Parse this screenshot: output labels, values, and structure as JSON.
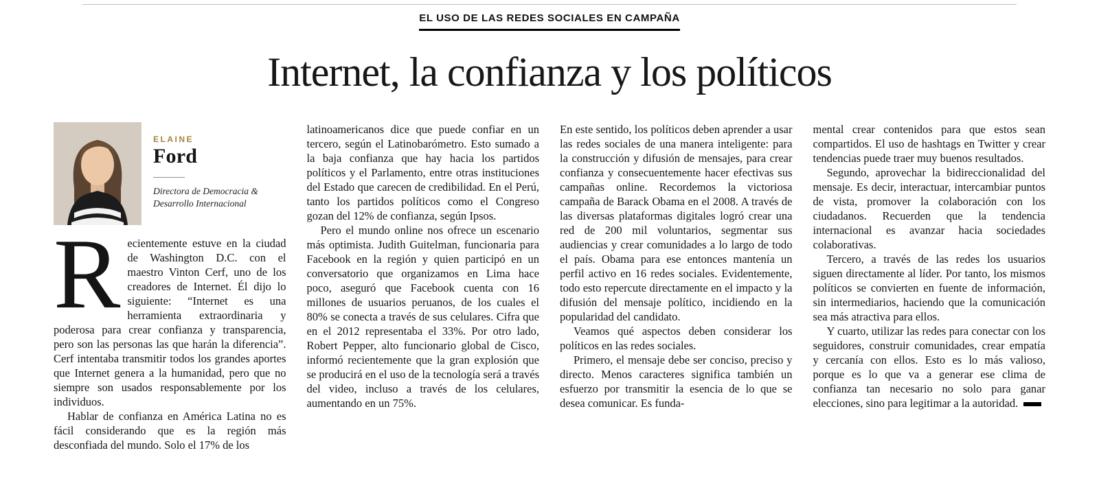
{
  "kicker": "EL USO DE LAS REDES SOCIALES EN CAMPAÑA",
  "title": "Internet, la confianza y los políticos",
  "author": {
    "first_name": "ELAINE",
    "last_name": "Ford",
    "role_line1": "Directora de Democracia &",
    "role_line2": "Desarrollo Internacional"
  },
  "colors": {
    "accent_gold": "#a8853e",
    "text": "#141414",
    "rule": "#000000"
  },
  "columns": {
    "col1": [
      "Recientemente estuve en la ciudad de Washington D.C. con el maestro Vinton Cerf, uno de los creadores de Internet. Él dijo lo siguiente: “Internet es una herramienta extraordinaria y poderosa para crear confianza y transparencia, pero son las personas las que harán la diferencia”. Cerf intentaba transmitir todos los grandes aportes que Internet genera a la humanidad, pero que no siempre son usados responsablemente por los individuos.",
      "Hablar de confianza en América Latina no es fácil considerando que es la región más desconfiada del mundo. Solo el 17% de los"
    ],
    "col2": [
      "latinoamericanos dice que puede confiar en un tercero, según el Latinobarómetro. Esto sumado a la baja confianza que hay hacia los partidos políticos y el Parlamento, entre otras instituciones del Estado que carecen de credibilidad. En el Perú, tanto los partidos políticos como el Congreso gozan del 12% de confianza, según Ipsos.",
      "Pero el mundo online nos ofrece un escenario más optimista. Judith Guitelman, funcionaria para Facebook en la región y quien participó en un conversatorio que organizamos en Lima hace poco, aseguró que Facebook cuenta con 16 millones de usuarios peruanos, de los cuales el 80% se conecta a través de sus celulares. Cifra que en el 2012 representaba el 33%. Por otro lado, Robert Pepper, alto funcionario global de Cisco, informó recientemente que la gran explosión que se producirá en el uso de la tecnología será a través del video, incluso a través de los celulares, aumentando en un 75%."
    ],
    "col3": [
      "En este sentido, los políticos deben aprender a usar las redes sociales de una manera inteligente: para la construcción y difusión de mensajes, para crear confianza y consecuentemente hacer efectivas sus campañas online. Recordemos la victoriosa campaña de Barack Obama en el 2008. A través de las diversas plataformas digitales logró crear una red de 200 mil voluntarios, segmentar sus audiencias y crear comunidades a lo largo de todo el país. Obama para ese entonces mantenía un perfil activo en 16 redes sociales. Evidentemente, todo esto repercute directamente en el impacto y la difusión del mensaje político, incidiendo en la popularidad del candidato.",
      "Veamos qué aspectos deben considerar los políticos en las redes sociales.",
      "Primero, el mensaje debe ser conciso, preciso y directo. Menos caracteres significa también un esfuerzo por transmitir la esencia de lo que se desea comunicar. Es funda-"
    ],
    "col4": [
      "mental crear contenidos para que estos sean compartidos. El uso de hashtags en Twitter y crear tendencias puede traer muy buenos resultados.",
      "Segundo, aprovechar la bidireccionalidad del mensaje. Es decir, interactuar, intercambiar puntos de vista, promover la colaboración con los ciudadanos. Recuerden que la tendencia internacional es avanzar hacia sociedades colaborativas.",
      "Tercero, a través de las redes los usuarios siguen directamente al líder. Por tanto, los mismos políticos se convierten en fuente de información, sin intermediarios, haciendo que la comunicación sea más atractiva para ellos.",
      "Y cuarto, utilizar las redes para conectar con los seguidores, construir comunidades, crear empatía y cercanía con ellos. Esto es lo más valioso, porque es lo que va a generar ese clima de confianza tan necesario no solo para ganar elecciones, sino para legitimar a la autoridad."
    ]
  }
}
